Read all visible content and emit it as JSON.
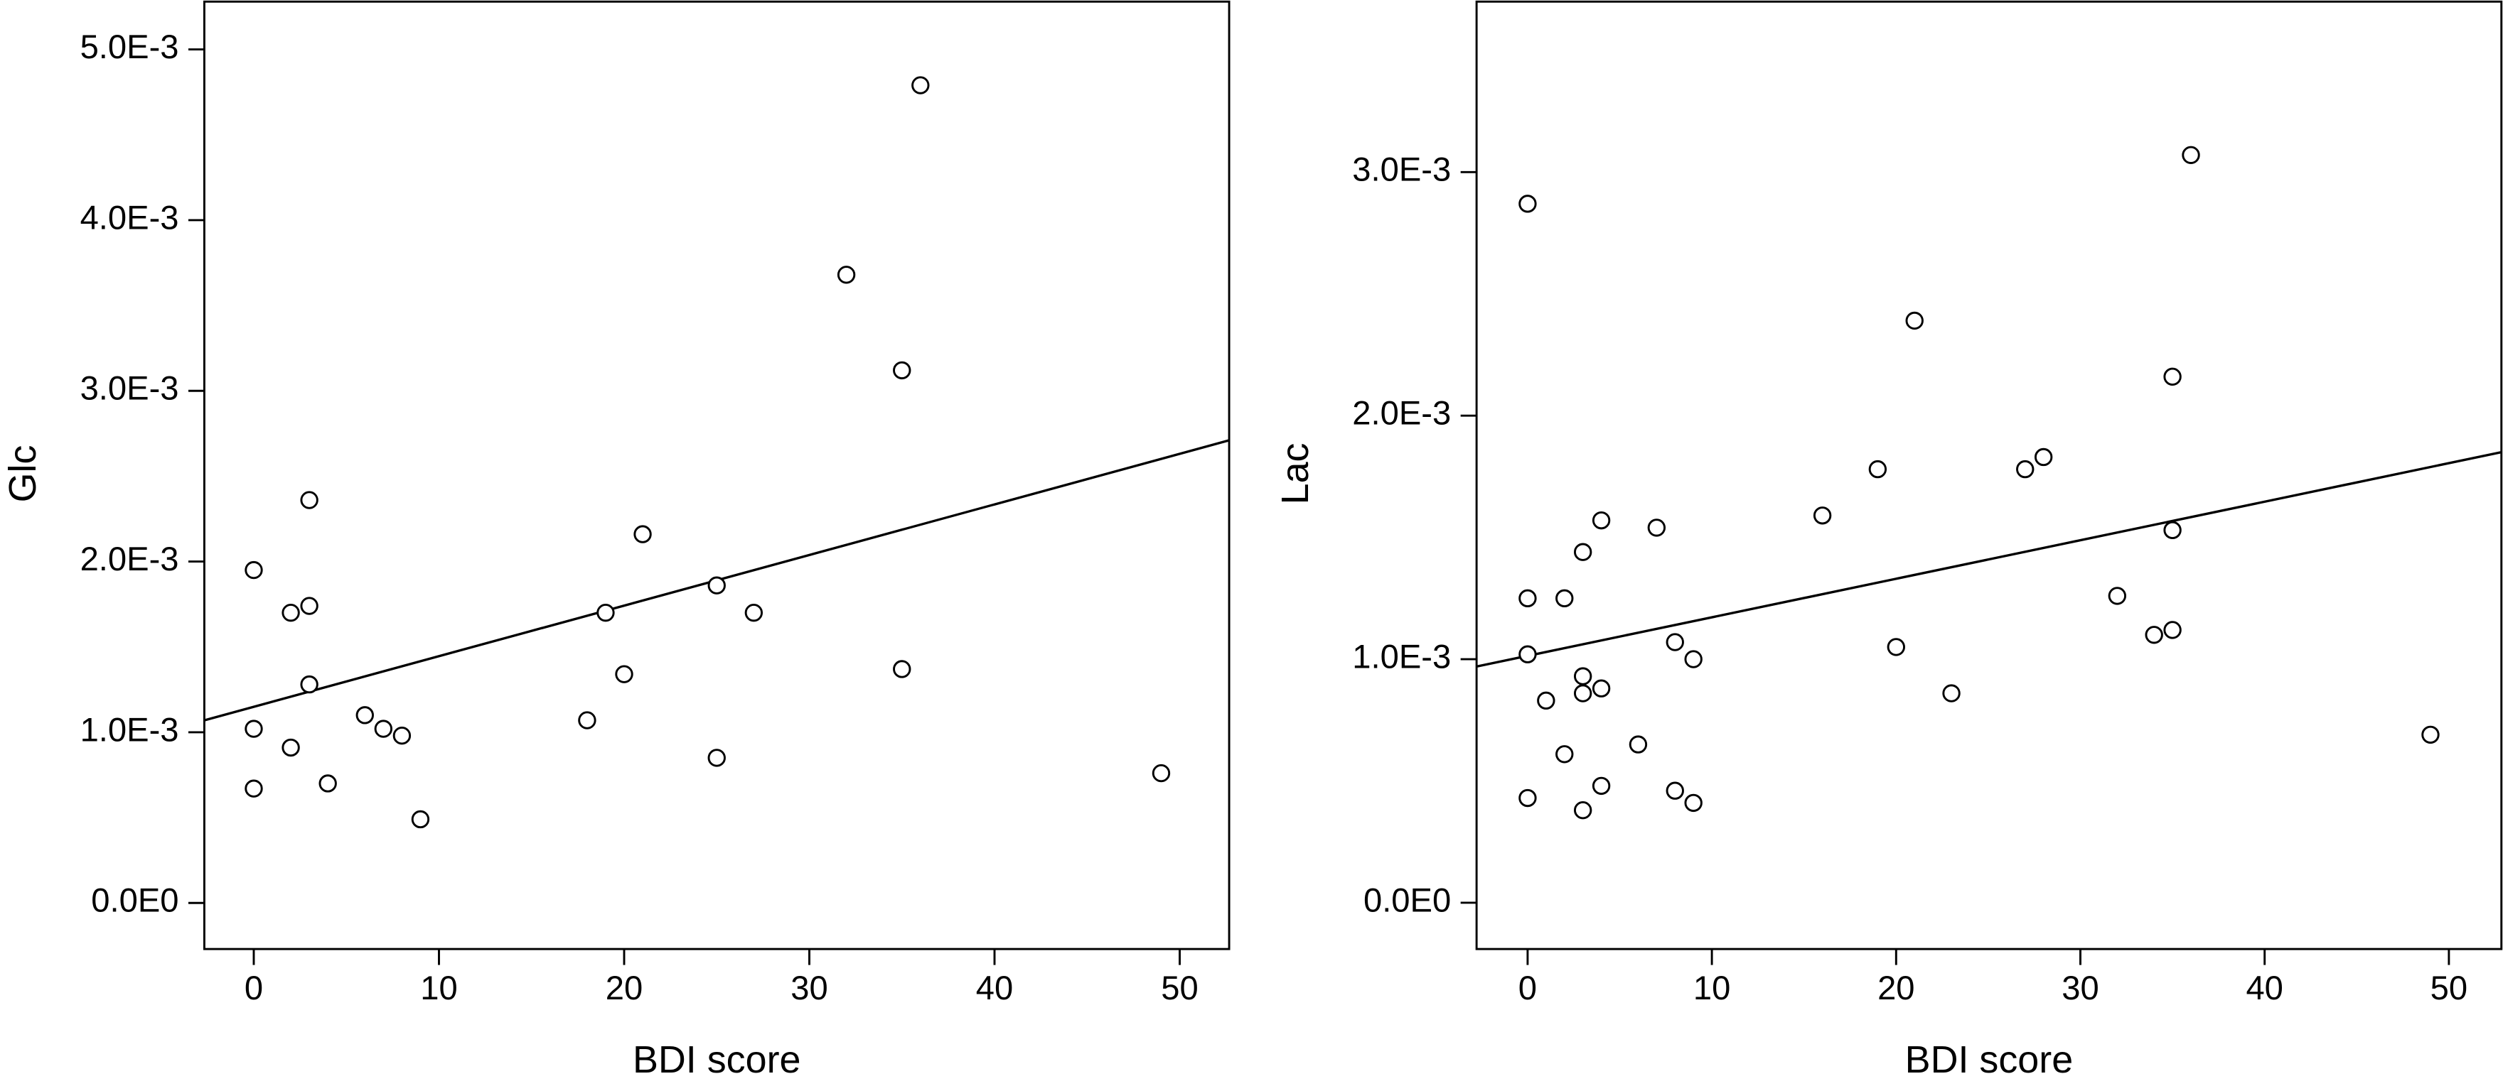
{
  "chart_data": [
    {
      "type": "scatter",
      "xlabel": "BDI score",
      "ylabel": "Glc",
      "color": "#000000",
      "x": [
        0,
        0,
        0,
        2,
        2,
        3,
        3,
        3,
        4,
        6,
        7,
        8,
        9,
        18,
        19,
        20,
        21,
        25,
        25,
        27,
        32,
        35,
        35,
        36,
        49
      ],
      "values": [
        0.00067,
        0.00102,
        0.00195,
        0.00091,
        0.0017,
        0.00236,
        0.00174,
        0.00128,
        0.0007,
        0.0011,
        0.00102,
        0.00098,
        0.00049,
        0.00107,
        0.0017,
        0.00134,
        0.00216,
        0.00085,
        0.00186,
        0.0017,
        0.00368,
        0.00312,
        0.00137,
        0.00479,
        0.00076
      ],
      "fit_line": {
        "x": [
          -2.67,
          52.67
        ],
        "y": [
          0.00107,
          0.00271
        ]
      },
      "xlim": [
        -2.67,
        52.67
      ],
      "ylim": [
        -0.00027,
        0.00528
      ],
      "xticks": [
        0,
        10,
        20,
        30,
        40,
        50
      ],
      "yticks": [
        {
          "value": 0,
          "label": "0.0E0"
        },
        {
          "value": 0.001,
          "label": "1.0E-3"
        },
        {
          "value": 0.002,
          "label": "2.0E-3"
        },
        {
          "value": 0.003,
          "label": "3.0E-3"
        },
        {
          "value": 0.004,
          "label": "4.0E-3"
        },
        {
          "value": 0.005,
          "label": "5.0E-3"
        }
      ]
    },
    {
      "type": "scatter",
      "xlabel": "BDI score",
      "ylabel": "Lac",
      "color": "#000000",
      "x": [
        0,
        0,
        0,
        0,
        1,
        2,
        2,
        3,
        3,
        3,
        3,
        4,
        4,
        4,
        6,
        7,
        8,
        8,
        9,
        9,
        16,
        19,
        20,
        21,
        23,
        27,
        28,
        32,
        34,
        35,
        35,
        35,
        36,
        49
      ],
      "values": [
        0.00287,
        0.00125,
        0.00102,
        0.00043,
        0.00083,
        0.00125,
        0.00061,
        0.00144,
        0.00093,
        0.00086,
        0.00038,
        0.00157,
        0.00088,
        0.00048,
        0.00065,
        0.00154,
        0.00107,
        0.00046,
        0.001,
        0.00041,
        0.00159,
        0.00178,
        0.00105,
        0.00239,
        0.00086,
        0.00178,
        0.00183,
        0.00126,
        0.0011,
        0.00216,
        0.00153,
        0.00112,
        0.00307,
        0.00069
      ],
      "fit_line": {
        "x": [
          -2.77,
          52.85
        ],
        "y": [
          0.00097,
          0.00185
        ]
      },
      "xlim": [
        -2.77,
        52.85
      ],
      "ylim": [
        -0.00019,
        0.0037
      ],
      "xticks": [
        0,
        10,
        20,
        30,
        40,
        50
      ],
      "yticks": [
        {
          "value": 0,
          "label": "0.0E0"
        },
        {
          "value": 0.001,
          "label": "1.0E-3"
        },
        {
          "value": 0.002,
          "label": "2.0E-3"
        },
        {
          "value": 0.003,
          "label": "3.0E-3"
        }
      ]
    }
  ]
}
